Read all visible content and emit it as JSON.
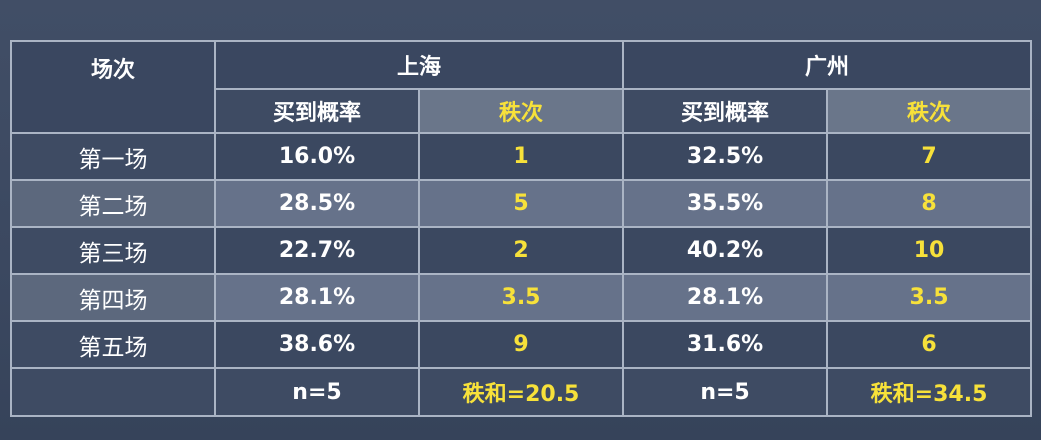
{
  "header": {
    "session_label": "场次",
    "city1": "上海",
    "city2": "广州",
    "prob_label": "买到概率",
    "rank_label": "秩次"
  },
  "rows": [
    {
      "label": "第一场",
      "sh_prob": "16.0%",
      "sh_rank": "1",
      "gz_prob": "32.5%",
      "gz_rank": "7"
    },
    {
      "label": "第二场",
      "sh_prob": "28.5%",
      "sh_rank": "5",
      "gz_prob": "35.5%",
      "gz_rank": "8"
    },
    {
      "label": "第三场",
      "sh_prob": "22.7%",
      "sh_rank": "2",
      "gz_prob": "40.2%",
      "gz_rank": "10"
    },
    {
      "label": "第四场",
      "sh_prob": "28.1%",
      "sh_rank": "3.5",
      "gz_prob": "28.1%",
      "gz_rank": "3.5"
    },
    {
      "label": "第五场",
      "sh_prob": "38.6%",
      "sh_rank": "9",
      "gz_prob": "31.6%",
      "gz_rank": "6"
    }
  ],
  "summary": {
    "label": "",
    "sh_n": "n=5",
    "sh_rank_sum": "秩和=20.5",
    "gz_n": "n=5",
    "gz_rank_sum": "秩和=34.5"
  },
  "colors": {
    "background": "#3d4a60",
    "border": "#aab4c4",
    "rank_text": "#f7e13a",
    "value_text": "#ffffff"
  }
}
